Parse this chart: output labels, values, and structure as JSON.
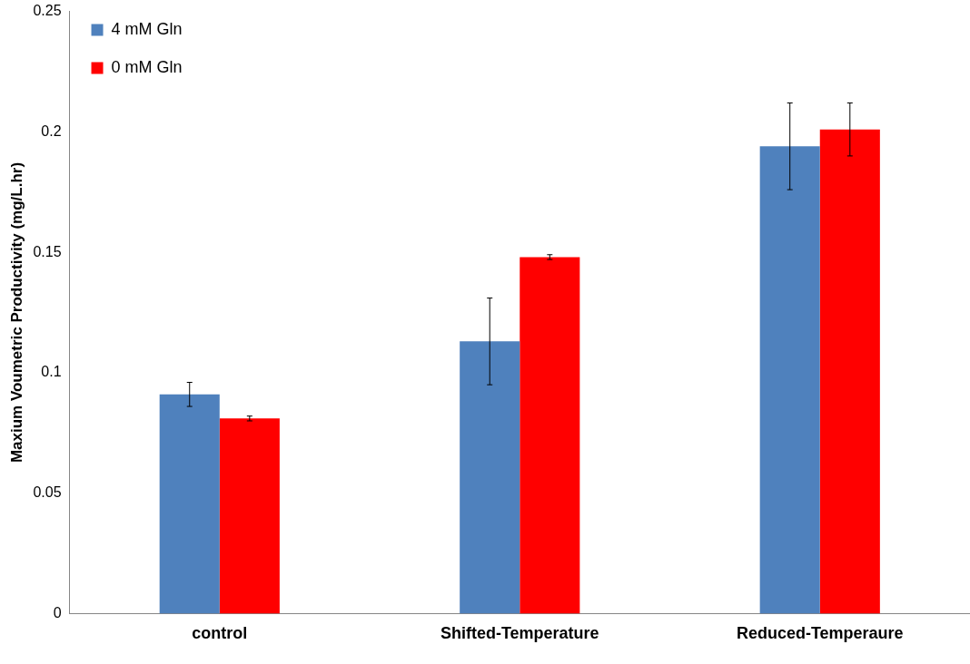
{
  "chart_data": {
    "type": "bar",
    "ylabel": "Maxium Voumetric Productivity (mg/L.hr)",
    "categories": [
      "control",
      "Shifted-Temperature",
      "Reduced-Temperaure"
    ],
    "series": [
      {
        "name": "4 mM Gln",
        "color": "#4f81bd",
        "values": [
          0.091,
          0.113,
          0.194
        ],
        "errors": [
          0.005,
          0.018,
          0.018
        ]
      },
      {
        "name": "0 mM Gln",
        "color": "#ff0000",
        "values": [
          0.081,
          0.148,
          0.201
        ],
        "errors": [
          0.001,
          0.001,
          0.011
        ]
      }
    ],
    "ylim": [
      0,
      0.25
    ],
    "yticks": [
      0,
      0.05,
      0.1,
      0.15,
      0.2,
      0.25
    ],
    "grid": false,
    "legend": "top left"
  }
}
